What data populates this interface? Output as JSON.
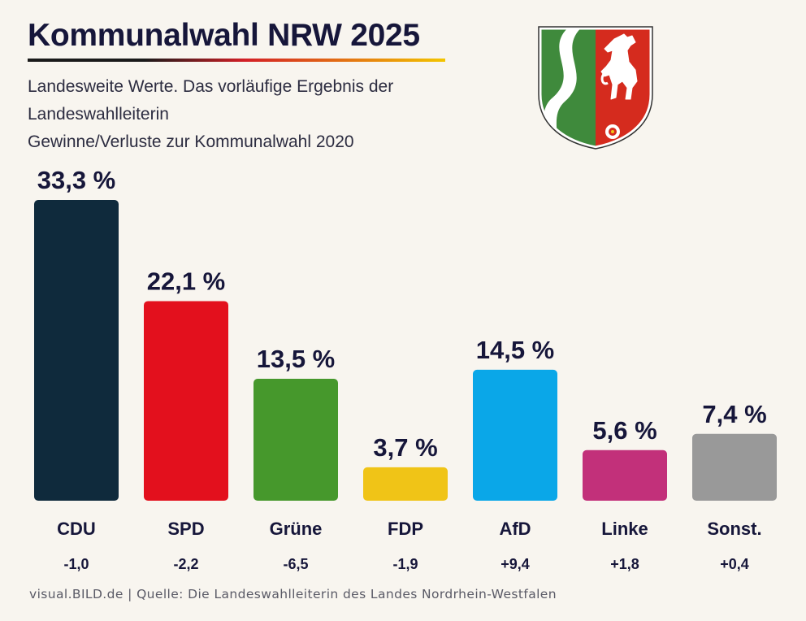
{
  "header": {
    "title": "Kommunalwahl NRW 2025",
    "subtitle_lines": [
      "Landesweite Werte. Das vorläufige Ergebnis der",
      "Landeswahlleiterin",
      "Gewinne/Verluste zur Kommunalwahl 2020"
    ]
  },
  "colors": {
    "background": "#f8f5ef",
    "text": "#16163a",
    "crest_green": "#3f8a3c",
    "crest_red": "#d52b1e",
    "crest_white": "#ffffff"
  },
  "chart_data": {
    "type": "bar",
    "title": "Kommunalwahl NRW 2025",
    "xlabel": "",
    "ylabel": "",
    "ylim": [
      0,
      35
    ],
    "grid": false,
    "categories": [
      "CDU",
      "SPD",
      "Grüne",
      "FDP",
      "AfD",
      "Linke",
      "Sonst."
    ],
    "values": [
      33.3,
      22.1,
      13.5,
      3.7,
      14.5,
      5.6,
      7.4
    ],
    "value_labels": [
      "33,3 %",
      "22,1 %",
      "13,5 %",
      "3,7 %",
      "14,5 %",
      "5,6 %",
      "7,4 %"
    ],
    "changes": [
      -1.0,
      -2.2,
      -6.5,
      -1.9,
      9.4,
      1.8,
      0.4
    ],
    "change_labels": [
      "-1,0",
      "-2,2",
      "-6,5",
      "-1,9",
      "+9,4",
      "+1,8",
      "+0,4"
    ],
    "bar_colors": [
      "#0f2a3c",
      "#e3101d",
      "#46982c",
      "#f0c417",
      "#0aa7e8",
      "#c2307a",
      "#999999"
    ]
  },
  "footer": {
    "brand": "visual.BILD.de",
    "separator": "|",
    "source": "Quelle: Die Landeswahlleiterin des Landes Nordrhein-Westfalen"
  }
}
